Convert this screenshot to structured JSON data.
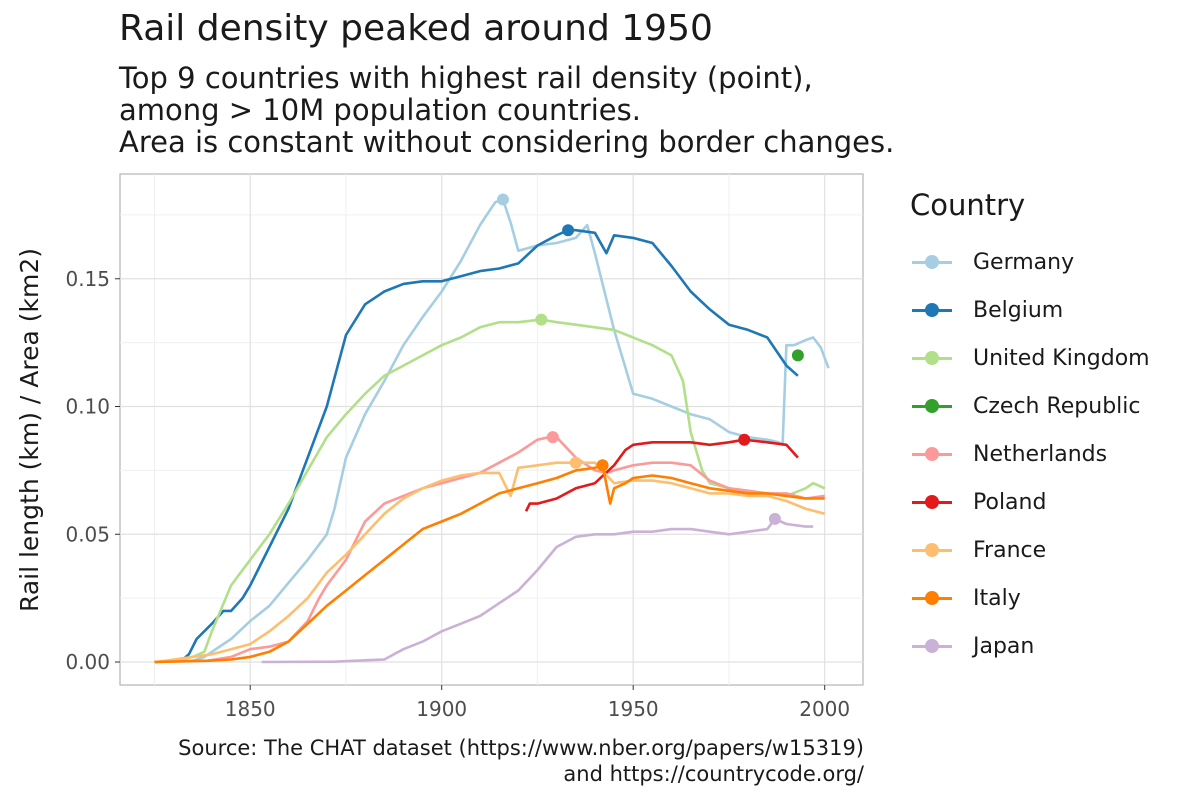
{
  "title": "Rail density peaked around 1950",
  "subtitle": [
    "Top 9 countries with highest rail density (point),",
    "among > 10M population countries.",
    "Area is constant without considering border changes."
  ],
  "caption": [
    "Source: The CHAT dataset (https://www.nber.org/papers/w15319)",
    "and https://countrycode.org/"
  ],
  "chart_data": {
    "type": "line",
    "xlabel": "",
    "ylabel": "Rail length (km) / Area (km2)",
    "xlim": [
      1816,
      2010
    ],
    "ylim": [
      -0.009,
      0.191
    ],
    "xticks": [
      1850,
      1900,
      1950,
      2000
    ],
    "yticks": [
      0.0,
      0.05,
      0.1,
      0.15
    ],
    "ytick_labels": [
      "0.00",
      "0.05",
      "0.10",
      "0.15"
    ],
    "grid": true,
    "legend_title": "Country",
    "legend_position": "right",
    "series": [
      {
        "name": "Germany",
        "color": "#a6cee3",
        "x": [
          1825,
          1835,
          1838,
          1840,
          1845,
          1850,
          1855,
          1860,
          1865,
          1870,
          1872,
          1875,
          1880,
          1885,
          1890,
          1895,
          1900,
          1905,
          1910,
          1914,
          1916,
          1918,
          1920,
          1925,
          1930,
          1935,
          1938,
          1940,
          1945,
          1950,
          1955,
          1960,
          1965,
          1970,
          1975,
          1980,
          1985,
          1988,
          1989,
          1990,
          1992,
          1995,
          1997,
          1999,
          2001
        ],
        "y": [
          0.0,
          0.0005,
          0.002,
          0.004,
          0.009,
          0.016,
          0.022,
          0.031,
          0.04,
          0.05,
          0.06,
          0.08,
          0.097,
          0.11,
          0.124,
          0.135,
          0.145,
          0.157,
          0.171,
          0.18,
          0.181,
          0.172,
          0.161,
          0.163,
          0.164,
          0.166,
          0.171,
          0.16,
          0.13,
          0.105,
          0.103,
          0.1,
          0.097,
          0.095,
          0.09,
          0.088,
          0.087,
          0.086,
          0.085,
          0.124,
          0.124,
          0.126,
          0.127,
          0.123,
          0.115
        ],
        "highlight": [
          1916,
          0.181
        ]
      },
      {
        "name": "Belgium",
        "color": "#1f78b4",
        "x": [
          1825,
          1832,
          1834,
          1836,
          1838,
          1840,
          1843,
          1845,
          1848,
          1850,
          1855,
          1860,
          1865,
          1870,
          1875,
          1880,
          1885,
          1890,
          1895,
          1900,
          1905,
          1910,
          1915,
          1920,
          1925,
          1930,
          1933,
          1935,
          1940,
          1943,
          1945,
          1950,
          1955,
          1960,
          1965,
          1970,
          1975,
          1980,
          1985,
          1990,
          1993
        ],
        "y": [
          0.0,
          0.0005,
          0.003,
          0.009,
          0.012,
          0.015,
          0.02,
          0.02,
          0.025,
          0.03,
          0.045,
          0.06,
          0.08,
          0.1,
          0.128,
          0.14,
          0.145,
          0.148,
          0.149,
          0.149,
          0.151,
          0.153,
          0.154,
          0.156,
          0.163,
          0.167,
          0.169,
          0.169,
          0.168,
          0.16,
          0.167,
          0.166,
          0.164,
          0.155,
          0.145,
          0.138,
          0.132,
          0.13,
          0.127,
          0.116,
          0.112
        ],
        "highlight": [
          1933,
          0.169
        ]
      },
      {
        "name": "United Kingdom",
        "color": "#b2df8a",
        "x": [
          1825,
          1830,
          1835,
          1838,
          1840,
          1845,
          1850,
          1855,
          1860,
          1865,
          1870,
          1875,
          1880,
          1885,
          1890,
          1895,
          1900,
          1905,
          1910,
          1915,
          1920,
          1926,
          1930,
          1935,
          1940,
          1945,
          1950,
          1955,
          1960,
          1963,
          1965,
          1968,
          1970,
          1975,
          1980,
          1985,
          1990,
          1995,
          1997,
          2000
        ],
        "y": [
          0.0,
          0.0005,
          0.002,
          0.004,
          0.012,
          0.03,
          0.04,
          0.05,
          0.062,
          0.075,
          0.088,
          0.097,
          0.105,
          0.112,
          0.116,
          0.12,
          0.124,
          0.127,
          0.131,
          0.133,
          0.133,
          0.134,
          0.133,
          0.132,
          0.131,
          0.13,
          0.127,
          0.124,
          0.12,
          0.11,
          0.09,
          0.075,
          0.07,
          0.068,
          0.067,
          0.066,
          0.065,
          0.068,
          0.07,
          0.068
        ],
        "highlight": [
          1926,
          0.134
        ]
      },
      {
        "name": "Czech Republic",
        "color": "#33a02c",
        "x": [
          1993
        ],
        "y": [
          0.12
        ],
        "highlight": [
          1993,
          0.12
        ]
      },
      {
        "name": "Netherlands",
        "color": "#fb9a99",
        "x": [
          1825,
          1839,
          1845,
          1850,
          1855,
          1860,
          1865,
          1868,
          1870,
          1875,
          1880,
          1885,
          1890,
          1895,
          1900,
          1905,
          1910,
          1915,
          1920,
          1925,
          1928,
          1930,
          1935,
          1940,
          1943,
          1945,
          1950,
          1955,
          1960,
          1965,
          1970,
          1975,
          1980,
          1985,
          1990,
          1995,
          2000
        ],
        "y": [
          0.0,
          0.0005,
          0.002,
          0.005,
          0.006,
          0.008,
          0.016,
          0.025,
          0.03,
          0.04,
          0.055,
          0.062,
          0.065,
          0.068,
          0.07,
          0.072,
          0.074,
          0.078,
          0.082,
          0.087,
          0.088,
          0.088,
          0.08,
          0.075,
          0.074,
          0.075,
          0.077,
          0.078,
          0.078,
          0.077,
          0.071,
          0.068,
          0.067,
          0.066,
          0.066,
          0.064,
          0.065
        ],
        "highlight": [
          1929,
          0.088
        ]
      },
      {
        "name": "Poland",
        "color": "#e31a1c",
        "x": [
          1922,
          1923,
          1925,
          1930,
          1935,
          1940,
          1945,
          1948,
          1950,
          1955,
          1960,
          1965,
          1970,
          1975,
          1979,
          1985,
          1990,
          1993
        ],
        "y": [
          0.059,
          0.062,
          0.062,
          0.064,
          0.068,
          0.07,
          0.077,
          0.083,
          0.085,
          0.086,
          0.086,
          0.086,
          0.085,
          0.086,
          0.087,
          0.086,
          0.085,
          0.08
        ],
        "highlight": [
          1979,
          0.087
        ]
      },
      {
        "name": "France",
        "color": "#fdbf6f",
        "x": [
          1825,
          1828,
          1835,
          1840,
          1845,
          1850,
          1855,
          1860,
          1865,
          1870,
          1875,
          1880,
          1885,
          1890,
          1895,
          1900,
          1905,
          1910,
          1915,
          1918,
          1920,
          1925,
          1930,
          1935,
          1940,
          1945,
          1950,
          1955,
          1960,
          1965,
          1970,
          1975,
          1980,
          1985,
          1990,
          1995,
          2000
        ],
        "y": [
          0.0,
          0.0005,
          0.002,
          0.003,
          0.005,
          0.007,
          0.012,
          0.018,
          0.025,
          0.035,
          0.042,
          0.05,
          0.058,
          0.064,
          0.068,
          0.071,
          0.073,
          0.074,
          0.074,
          0.065,
          0.076,
          0.077,
          0.078,
          0.078,
          0.078,
          0.07,
          0.071,
          0.071,
          0.07,
          0.068,
          0.066,
          0.066,
          0.065,
          0.065,
          0.063,
          0.06,
          0.058
        ],
        "highlight": [
          1935,
          0.078
        ]
      },
      {
        "name": "Italy",
        "color": "#ff7f00",
        "x": [
          1825,
          1839,
          1845,
          1850,
          1855,
          1860,
          1865,
          1870,
          1875,
          1880,
          1885,
          1890,
          1895,
          1900,
          1905,
          1910,
          1915,
          1920,
          1925,
          1930,
          1935,
          1940,
          1942,
          1944,
          1945,
          1948,
          1950,
          1955,
          1960,
          1965,
          1970,
          1975,
          1980,
          1985,
          1990,
          1995,
          2000
        ],
        "y": [
          0.0,
          0.0005,
          0.001,
          0.002,
          0.004,
          0.008,
          0.015,
          0.022,
          0.028,
          0.034,
          0.04,
          0.046,
          0.052,
          0.055,
          0.058,
          0.062,
          0.066,
          0.068,
          0.07,
          0.072,
          0.075,
          0.076,
          0.077,
          0.062,
          0.068,
          0.07,
          0.072,
          0.073,
          0.072,
          0.07,
          0.068,
          0.067,
          0.066,
          0.066,
          0.065,
          0.064,
          0.064
        ],
        "highlight": [
          1942,
          0.077
        ]
      },
      {
        "name": "Japan",
        "color": "#cab2d6",
        "x": [
          1853,
          1872,
          1885,
          1890,
          1895,
          1900,
          1905,
          1910,
          1915,
          1920,
          1925,
          1930,
          1935,
          1940,
          1945,
          1950,
          1955,
          1960,
          1965,
          1970,
          1975,
          1980,
          1985,
          1987,
          1990,
          1995,
          1997
        ],
        "y": [
          0.0,
          0.0001,
          0.001,
          0.005,
          0.008,
          0.012,
          0.015,
          0.018,
          0.023,
          0.028,
          0.036,
          0.045,
          0.049,
          0.05,
          0.05,
          0.051,
          0.051,
          0.052,
          0.052,
          0.051,
          0.05,
          0.051,
          0.052,
          0.056,
          0.054,
          0.053,
          0.053
        ],
        "highlight": [
          1987,
          0.056
        ]
      }
    ]
  }
}
